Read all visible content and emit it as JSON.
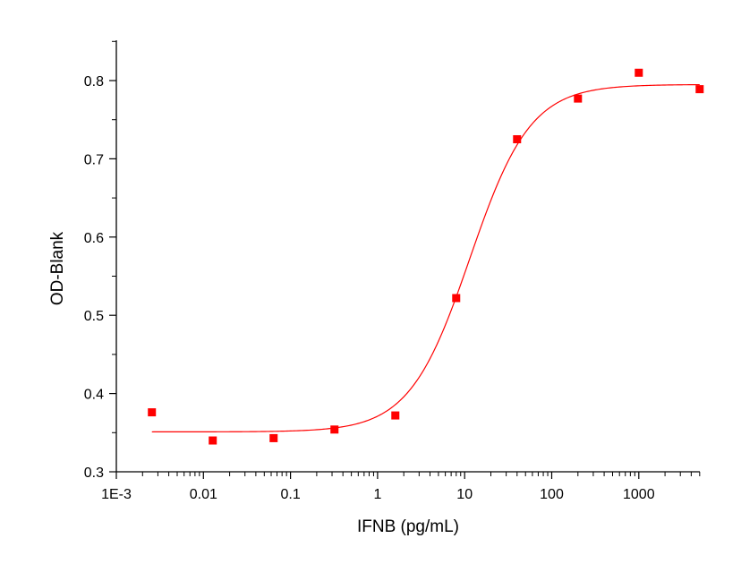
{
  "chart_data": {
    "type": "scatter",
    "xlabel": "IFNB (pg/mL)",
    "ylabel": "OD-Blank",
    "x_scale": "log",
    "xlim": [
      0.001,
      5000
    ],
    "ylim": [
      0.3,
      0.85
    ],
    "x_ticks": [
      {
        "value": 0.001,
        "label": "1E-3"
      },
      {
        "value": 0.01,
        "label": "0.01"
      },
      {
        "value": 0.1,
        "label": "0.1"
      },
      {
        "value": 1,
        "label": "1"
      },
      {
        "value": 10,
        "label": "10"
      },
      {
        "value": 100,
        "label": "100"
      },
      {
        "value": 1000,
        "label": "1000"
      }
    ],
    "y_ticks": [
      {
        "value": 0.3,
        "label": "0.3"
      },
      {
        "value": 0.4,
        "label": "0.4"
      },
      {
        "value": 0.5,
        "label": "0.5"
      },
      {
        "value": 0.6,
        "label": "0.6"
      },
      {
        "value": 0.7,
        "label": "0.7"
      },
      {
        "value": 0.8,
        "label": "0.8"
      }
    ],
    "series": [
      {
        "type": "scatter",
        "color": "#ff0000",
        "marker": "square",
        "points": [
          {
            "x": 0.00256,
            "y": 0.376
          },
          {
            "x": 0.0128,
            "y": 0.34
          },
          {
            "x": 0.064,
            "y": 0.343
          },
          {
            "x": 0.32,
            "y": 0.354
          },
          {
            "x": 1.6,
            "y": 0.372
          },
          {
            "x": 8,
            "y": 0.522
          },
          {
            "x": 40,
            "y": 0.725
          },
          {
            "x": 200,
            "y": 0.777
          },
          {
            "x": 1000,
            "y": 0.81
          },
          {
            "x": 5000,
            "y": 0.789
          }
        ]
      },
      {
        "type": "line",
        "color": "#ff0000",
        "fit": "four-parameter logistic",
        "params": {
          "bottom": 0.351,
          "top": 0.795,
          "ec50": 11.5,
          "hill": 1.25
        },
        "x_range": [
          0.00256,
          5000
        ]
      }
    ],
    "grid": false,
    "legend": "none"
  }
}
